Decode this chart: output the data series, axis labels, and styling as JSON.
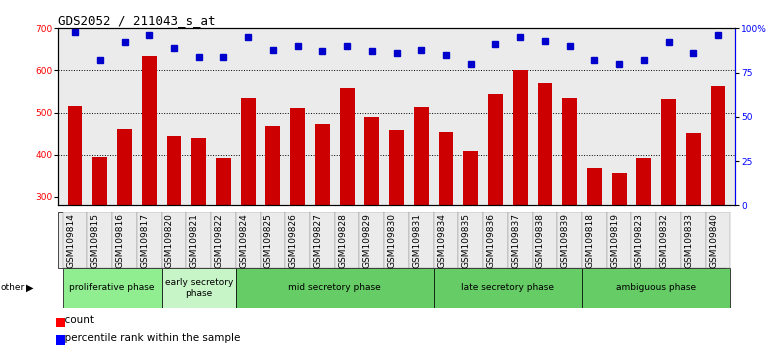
{
  "title": "GDS2052 / 211043_s_at",
  "samples": [
    "GSM109814",
    "GSM109815",
    "GSM109816",
    "GSM109817",
    "GSM109820",
    "GSM109821",
    "GSM109822",
    "GSM109824",
    "GSM109825",
    "GSM109826",
    "GSM109827",
    "GSM109828",
    "GSM109829",
    "GSM109830",
    "GSM109831",
    "GSM109834",
    "GSM109835",
    "GSM109836",
    "GSM109837",
    "GSM109838",
    "GSM109839",
    "GSM109818",
    "GSM109819",
    "GSM109823",
    "GSM109832",
    "GSM109833",
    "GSM109840"
  ],
  "counts": [
    515,
    395,
    460,
    635,
    445,
    440,
    392,
    535,
    468,
    510,
    473,
    558,
    490,
    458,
    513,
    453,
    410,
    543,
    600,
    570,
    535,
    368,
    357,
    393,
    532,
    452,
    563
  ],
  "percentile_ranks": [
    98,
    82,
    92,
    96,
    89,
    84,
    84,
    95,
    88,
    90,
    87,
    90,
    87,
    86,
    88,
    85,
    80,
    91,
    95,
    93,
    90,
    82,
    80,
    82,
    92,
    86,
    96
  ],
  "phase_info": [
    {
      "label": "proliferative phase",
      "start": 0,
      "end": 4,
      "color": "#90EE90"
    },
    {
      "label": "early secretory\nphase",
      "start": 4,
      "end": 7,
      "color": "#c8f5c8"
    },
    {
      "label": "mid secretory phase",
      "start": 7,
      "end": 15,
      "color": "#66CC66"
    },
    {
      "label": "late secretory phase",
      "start": 15,
      "end": 21,
      "color": "#66CC66"
    },
    {
      "label": "ambiguous phase",
      "start": 21,
      "end": 27,
      "color": "#66CC66"
    }
  ],
  "bar_color": "#CC0000",
  "dot_color": "#0000CC",
  "ylim_left": [
    280,
    700
  ],
  "ylim_right": [
    0,
    100
  ],
  "yticks_left": [
    300,
    400,
    500,
    600,
    700
  ],
  "yticks_right": [
    0,
    25,
    50,
    75,
    100
  ],
  "yticklabels_right": [
    "0",
    "25",
    "50",
    "75",
    "100%"
  ],
  "grid_lines": [
    400,
    500,
    600
  ],
  "plot_bg_color": "#EBEBEB",
  "title_fontsize": 9,
  "tick_fontsize": 6.5,
  "label_fontsize": 6.5,
  "legend_fontsize": 7.5
}
